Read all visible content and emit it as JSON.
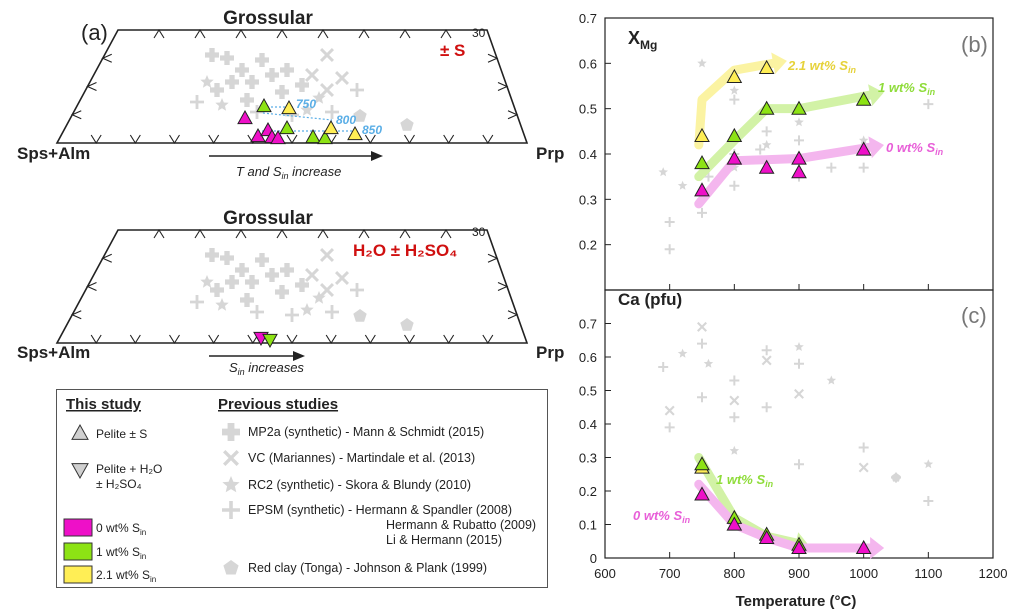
{
  "panel_a": {
    "label": "(a)",
    "top": {
      "apex_label": "Grossular",
      "left_label": "Sps+Alm",
      "right_label": "Prp",
      "corner_value": "30",
      "condition": "± S",
      "arrow_label": "T and S",
      "arrow_label_sub": "in",
      "arrow_label_tail": " increase",
      "isotherms": [
        "750",
        "800",
        "850"
      ]
    },
    "bottom": {
      "apex_label": "Grossular",
      "left_label": "Sps+Alm",
      "right_label": "Prp",
      "corner_value": "30",
      "condition": "H₂O ± H₂SO₄",
      "arrow_label": "S",
      "arrow_label_sub": "in",
      "arrow_label_tail": " increases"
    }
  },
  "legend": {
    "this_study_title": "This study",
    "previous_title": "Previous studies",
    "this_items": [
      {
        "symbol": "triangle-up",
        "label": "Pelite ± S"
      },
      {
        "symbol": "triangle-down",
        "label": "Pelite + H₂O",
        "label2": "± H₂SO₄"
      }
    ],
    "sulfur_items": [
      {
        "color": "#ee10c8",
        "label": "0 wt% S",
        "sub": "in"
      },
      {
        "color": "#8de314",
        "label": "1 wt% S",
        "sub": "in"
      },
      {
        "color": "#ffee55",
        "label": "2.1 wt% S",
        "sub": "in"
      }
    ],
    "previous_items": [
      {
        "symbol": "plus",
        "label": "MP2a (synthetic) - Mann & Schmidt (2015)"
      },
      {
        "symbol": "cross",
        "label": "VC (Mariannes) - Martindale et al. (2013)"
      },
      {
        "symbol": "star",
        "label": "RC2 (synthetic) - Skora & Blundy (2010)"
      },
      {
        "symbol": "thinplus",
        "label": "EPSM (synthetic) - Hermann & Spandler (2008)",
        "label2": "Hermann & Rubatto (2009)",
        "label3": "Li & Hermann (2015)"
      },
      {
        "symbol": "pentagon",
        "label": "Red clay (Tonga) - Johnson & Plank (1999)"
      }
    ]
  },
  "colors": {
    "s0": "#ee10c8",
    "s1": "#8de314",
    "s21": "#ffee55",
    "s0_arrow": "#f4b6ee",
    "s1_arrow": "#d2f2a6",
    "s21_arrow": "#fbf3a2",
    "grey": "#d6d6d6",
    "isotherm": "#5aaee6"
  },
  "chart_data": [
    {
      "panel": "(b)",
      "type": "scatter",
      "ylabel": "X",
      "ylabel_sub": "Mg",
      "ylim": [
        0.1,
        0.7
      ],
      "yticks": [
        "0.2",
        "0.3",
        "0.4",
        "0.5",
        "0.6",
        "0.7"
      ],
      "xlim": [
        600,
        1200
      ],
      "series": [
        {
          "name": "2.1 wt% S",
          "name_sub": "in",
          "x": [
            750,
            800,
            850
          ],
          "y": [
            0.44,
            0.57,
            0.59
          ]
        },
        {
          "name": "1 wt% S",
          "name_sub": "in",
          "x": [
            750,
            800,
            850,
            900,
            1000
          ],
          "y": [
            0.38,
            0.44,
            0.5,
            0.5,
            0.52
          ]
        },
        {
          "name": "0 wt% S",
          "name_sub": "in",
          "x": [
            750,
            800,
            850,
            900,
            900,
            1000
          ],
          "y": [
            0.32,
            0.39,
            0.37,
            0.39,
            0.36,
            0.41
          ]
        }
      ],
      "previous": {
        "x": [
          690,
          700,
          700,
          720,
          750,
          750,
          750,
          760,
          800,
          800,
          800,
          800,
          800,
          840,
          850,
          850,
          900,
          900,
          900,
          950,
          1000,
          1000,
          1100
        ],
        "y": [
          0.36,
          0.25,
          0.19,
          0.33,
          0.27,
          0.3,
          0.6,
          0.35,
          0.33,
          0.37,
          0.4,
          0.52,
          0.54,
          0.41,
          0.45,
          0.42,
          0.43,
          0.35,
          0.47,
          0.37,
          0.37,
          0.43,
          0.51
        ]
      },
      "annotations": [
        "2.1 wt% S",
        "1 wt% S",
        "0 wt% S"
      ]
    },
    {
      "panel": "(c)",
      "type": "scatter",
      "ylabel": "Ca (pfu)",
      "ylim": [
        0,
        0.8
      ],
      "yticks": [
        "0",
        "0.1",
        "0.2",
        "0.3",
        "0.4",
        "0.5",
        "0.6",
        "0.7"
      ],
      "xlim": [
        600,
        1200
      ],
      "xticks": [
        "600",
        "700",
        "800",
        "900",
        "1000",
        "1100",
        "1200"
      ],
      "xlabel": "Temperature (°C)",
      "series": [
        {
          "name": "1 wt% S",
          "name_sub": "in",
          "x": [
            750,
            800,
            850,
            900
          ],
          "y": [
            0.28,
            0.12,
            0.07,
            0.04
          ]
        },
        {
          "name": "0 wt% S",
          "name_sub": "in",
          "x": [
            750,
            800,
            850,
            900,
            1000
          ],
          "y": [
            0.19,
            0.1,
            0.06,
            0.03,
            0.03
          ]
        },
        {
          "name": "2.1 wt% S",
          "name_sub": "in",
          "x": [
            750
          ],
          "y": [
            0.27
          ]
        }
      ],
      "previous": {
        "x": [
          690,
          700,
          700,
          720,
          750,
          750,
          750,
          760,
          800,
          800,
          800,
          800,
          850,
          850,
          850,
          900,
          900,
          900,
          900,
          950,
          1000,
          1000,
          1050,
          1100,
          1100
        ],
        "y": [
          0.57,
          0.44,
          0.39,
          0.61,
          0.64,
          0.69,
          0.48,
          0.58,
          0.53,
          0.47,
          0.42,
          0.32,
          0.62,
          0.59,
          0.45,
          0.63,
          0.58,
          0.49,
          0.28,
          0.53,
          0.33,
          0.27,
          0.24,
          0.28,
          0.17
        ]
      },
      "annotations": [
        "1 wt% S",
        "0 wt% S"
      ]
    }
  ]
}
